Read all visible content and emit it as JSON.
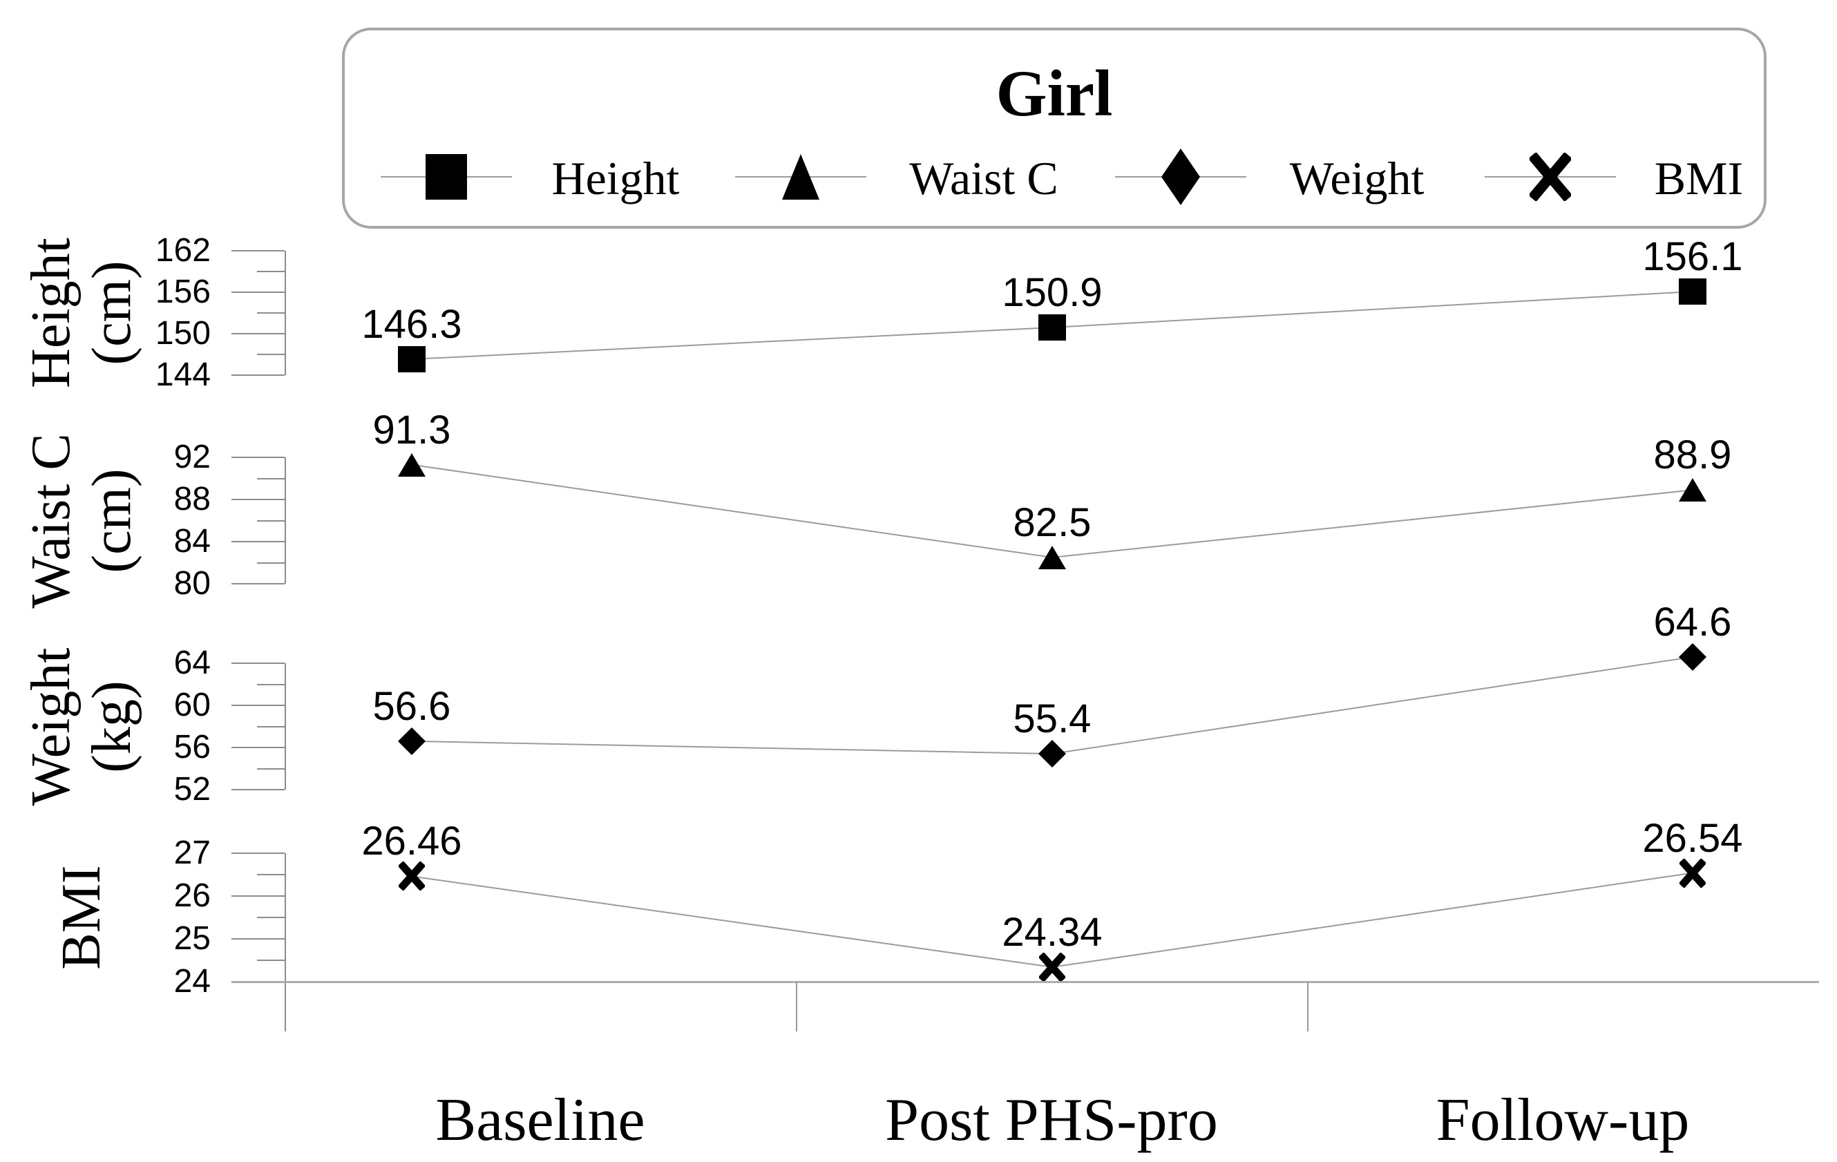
{
  "legend": {
    "title": "Girl",
    "items": [
      {
        "label": "Height",
        "marker": "square"
      },
      {
        "label": "Waist C",
        "marker": "triangle"
      },
      {
        "label": "Weight",
        "marker": "diamond"
      },
      {
        "label": "BMI",
        "marker": "x"
      }
    ]
  },
  "x_axis": {
    "categories": [
      "Baseline",
      "Post PHS-pro",
      "Follow-up"
    ]
  },
  "colors": {
    "marker": "#000000",
    "series_line": "#9b9b9b",
    "axis_tick": "#8c8c8c",
    "axis_line": "#adadad",
    "text": "#000000",
    "legend_border": "#a6a6a6"
  },
  "chart_data": {
    "type": "line",
    "title": "Girl",
    "categories": [
      "Baseline",
      "Post PHS-pro",
      "Follow-up"
    ],
    "legend_position": "top",
    "grid": false,
    "series": [
      {
        "name": "Height",
        "unit": "(cm)",
        "marker": "square",
        "values": [
          146.3,
          150.9,
          156.1
        ],
        "axis_ticks": [
          162,
          156,
          150,
          144
        ],
        "axis_range": [
          144,
          162
        ]
      },
      {
        "name": "Waist C",
        "unit": "(cm)",
        "marker": "triangle",
        "values": [
          91.3,
          82.5,
          88.9
        ],
        "axis_ticks": [
          92,
          88,
          84,
          80
        ],
        "axis_range": [
          80,
          92
        ]
      },
      {
        "name": "Weight",
        "unit": "(kg)",
        "marker": "diamond",
        "values": [
          56.6,
          55.4,
          64.6
        ],
        "axis_ticks": [
          64,
          60,
          56,
          52
        ],
        "axis_range": [
          52,
          64
        ]
      },
      {
        "name": "BMI",
        "unit": "",
        "marker": "x",
        "values": [
          26.46,
          24.34,
          26.54
        ],
        "axis_ticks": [
          27,
          26,
          25,
          24
        ],
        "axis_range": [
          24,
          27
        ]
      }
    ]
  }
}
